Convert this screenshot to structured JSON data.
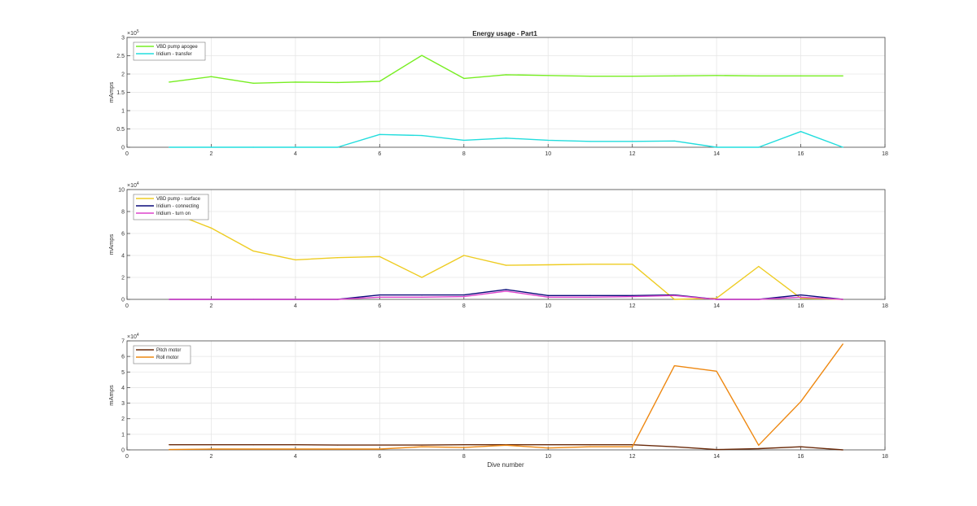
{
  "figure": {
    "title": "Energy usage - Part1",
    "xlabel": "Dive number"
  },
  "chart_data": [
    {
      "type": "line",
      "title": "Energy usage - Part1",
      "xlabel": "",
      "ylabel": "mAmps",
      "xlim": [
        0,
        18
      ],
      "ylim": [
        0,
        3
      ],
      "y_exponent": "5",
      "xticks": [
        "0",
        "2",
        "4",
        "6",
        "8",
        "10",
        "12",
        "14",
        "16",
        "18"
      ],
      "yticks": [
        "0",
        "0.5",
        "1",
        "1.5",
        "2",
        "2.5",
        "3"
      ],
      "grid": true,
      "legend": "top-left",
      "x": [
        1,
        2,
        3,
        4,
        5,
        6,
        7,
        8,
        9,
        10,
        11,
        12,
        13,
        14,
        15,
        16,
        17
      ],
      "series": [
        {
          "name": "VBD pump apogee",
          "color": "#77ee22",
          "values": [
            1.78,
            1.93,
            1.75,
            1.78,
            1.77,
            1.8,
            2.51,
            1.88,
            1.98,
            1.96,
            1.94,
            1.94,
            1.95,
            1.96,
            1.95,
            1.95,
            1.95
          ]
        },
        {
          "name": "Iridium - transfer",
          "color": "#22dddd",
          "values": [
            0,
            0,
            0,
            0,
            0,
            0.35,
            0.32,
            0.19,
            0.25,
            0.19,
            0.16,
            0.16,
            0.17,
            0,
            0,
            0.43,
            0
          ]
        }
      ]
    },
    {
      "type": "line",
      "title": "",
      "xlabel": "",
      "ylabel": "mAmps",
      "xlim": [
        0,
        18
      ],
      "ylim": [
        0,
        10
      ],
      "y_exponent": "4",
      "xticks": [
        "0",
        "2",
        "4",
        "6",
        "8",
        "10",
        "12",
        "14",
        "16",
        "18"
      ],
      "yticks": [
        "0",
        "2",
        "4",
        "6",
        "8",
        "10"
      ],
      "grid": true,
      "legend": "top-left",
      "x": [
        1,
        2,
        3,
        4,
        5,
        6,
        7,
        8,
        9,
        10,
        11,
        12,
        13,
        14,
        15,
        16,
        17
      ],
      "series": [
        {
          "name": "VBD pump - surface",
          "color": "#eecc22",
          "values": [
            8.0,
            6.5,
            4.4,
            3.6,
            3.8,
            3.9,
            2.0,
            4.0,
            3.1,
            3.15,
            3.2,
            3.2,
            0,
            0.1,
            3.0,
            0.1,
            0
          ]
        },
        {
          "name": "Iridium - connecting",
          "color": "#0a0a7a",
          "values": [
            0,
            0,
            0,
            0,
            0,
            0.4,
            0.4,
            0.4,
            0.9,
            0.35,
            0.35,
            0.35,
            0.4,
            0,
            0,
            0.4,
            0
          ]
        },
        {
          "name": "Iridium - turn on",
          "color": "#dd44cc",
          "values": [
            0,
            0,
            0,
            0,
            0,
            0.2,
            0.2,
            0.25,
            0.75,
            0.2,
            0.2,
            0.25,
            0.35,
            0,
            0,
            0.2,
            0
          ]
        }
      ]
    },
    {
      "type": "line",
      "title": "",
      "xlabel": "Dive number",
      "ylabel": "mAmps",
      "xlim": [
        0,
        18
      ],
      "ylim": [
        0,
        7
      ],
      "y_exponent": "4",
      "xticks": [
        "0",
        "2",
        "4",
        "6",
        "8",
        "10",
        "12",
        "14",
        "16",
        "18"
      ],
      "yticks": [
        "0",
        "1",
        "2",
        "3",
        "4",
        "5",
        "6",
        "7"
      ],
      "grid": true,
      "legend": "top-left",
      "x": [
        1,
        2,
        3,
        4,
        5,
        6,
        7,
        8,
        9,
        10,
        11,
        12,
        13,
        14,
        15,
        16,
        17
      ],
      "series": [
        {
          "name": "Pitch motor",
          "color": "#6a2a0a",
          "values": [
            0.33,
            0.33,
            0.33,
            0.33,
            0.31,
            0.31,
            0.31,
            0.33,
            0.33,
            0.33,
            0.33,
            0.33,
            0.2,
            0.02,
            0.08,
            0.2,
            0
          ]
        },
        {
          "name": "Roll motor",
          "color": "#ee8811",
          "values": [
            0.02,
            0.05,
            0.05,
            0.05,
            0.05,
            0.05,
            0.2,
            0.15,
            0.3,
            0.12,
            0.2,
            0.2,
            5.4,
            5.05,
            0.3,
            3.1,
            6.8
          ]
        }
      ]
    }
  ]
}
